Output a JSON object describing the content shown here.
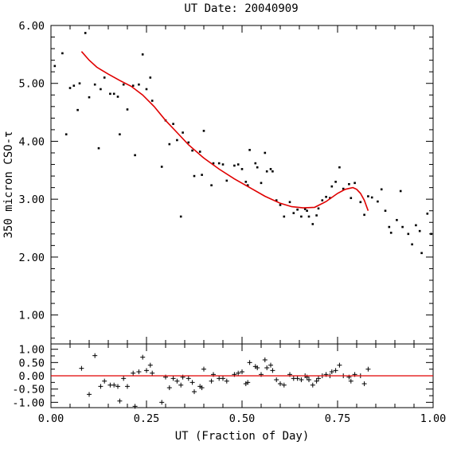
{
  "colors": {
    "fit": "#e00000",
    "zero_line": "#e00000",
    "points": "#000000"
  },
  "chart_data": [
    {
      "type": "scatter",
      "title": "UT Date: 20040909",
      "ylabel": "350 micron CSO-τ",
      "xlim": [
        0,
        1
      ],
      "ylim": [
        0.5,
        6.0
      ],
      "y_ticks": [
        "1.00",
        "2.00",
        "3.00",
        "4.00",
        "5.00",
        "6.00"
      ],
      "grid": false,
      "series": [
        {
          "marker": "dot",
          "points": [
            [
              0.01,
              5.3
            ],
            [
              0.03,
              5.52
            ],
            [
              0.04,
              4.12
            ],
            [
              0.05,
              4.92
            ],
            [
              0.06,
              4.96
            ],
            [
              0.07,
              4.54
            ],
            [
              0.075,
              5.0
            ],
            [
              0.09,
              5.87
            ],
            [
              0.1,
              4.76
            ],
            [
              0.115,
              4.98
            ],
            [
              0.125,
              3.88
            ],
            [
              0.13,
              4.9
            ],
            [
              0.14,
              5.1
            ],
            [
              0.155,
              4.82
            ],
            [
              0.165,
              4.82
            ],
            [
              0.175,
              4.77
            ],
            [
              0.18,
              4.12
            ],
            [
              0.19,
              4.98
            ],
            [
              0.2,
              4.55
            ],
            [
              0.215,
              4.96
            ],
            [
              0.22,
              3.76
            ],
            [
              0.23,
              4.98
            ],
            [
              0.24,
              5.5
            ],
            [
              0.25,
              4.9
            ],
            [
              0.26,
              5.1
            ],
            [
              0.265,
              4.7
            ],
            [
              0.29,
              3.56
            ],
            [
              0.3,
              4.36
            ],
            [
              0.31,
              3.95
            ],
            [
              0.32,
              4.3
            ],
            [
              0.33,
              4.02
            ],
            [
              0.34,
              2.7
            ],
            [
              0.345,
              4.15
            ],
            [
              0.36,
              3.98
            ],
            [
              0.37,
              3.84
            ],
            [
              0.375,
              3.4
            ],
            [
              0.39,
              3.82
            ],
            [
              0.395,
              3.42
            ],
            [
              0.4,
              4.18
            ],
            [
              0.42,
              3.24
            ],
            [
              0.425,
              3.62
            ],
            [
              0.44,
              3.62
            ],
            [
              0.45,
              3.6
            ],
            [
              0.46,
              3.32
            ],
            [
              0.48,
              3.58
            ],
            [
              0.49,
              3.6
            ],
            [
              0.5,
              3.52
            ],
            [
              0.51,
              3.3
            ],
            [
              0.515,
              3.24
            ],
            [
              0.52,
              3.85
            ],
            [
              0.535,
              3.62
            ],
            [
              0.54,
              3.55
            ],
            [
              0.55,
              3.28
            ],
            [
              0.56,
              3.8
            ],
            [
              0.565,
              3.48
            ],
            [
              0.575,
              3.52
            ],
            [
              0.58,
              3.48
            ],
            [
              0.59,
              2.98
            ],
            [
              0.6,
              2.9
            ],
            [
              0.61,
              2.7
            ],
            [
              0.625,
              2.95
            ],
            [
              0.635,
              2.76
            ],
            [
              0.645,
              2.82
            ],
            [
              0.655,
              2.7
            ],
            [
              0.665,
              2.83
            ],
            [
              0.67,
              2.8
            ],
            [
              0.675,
              2.7
            ],
            [
              0.685,
              2.57
            ],
            [
              0.695,
              2.72
            ],
            [
              0.7,
              2.84
            ],
            [
              0.71,
              2.98
            ],
            [
              0.72,
              3.04
            ],
            [
              0.73,
              3.02
            ],
            [
              0.735,
              3.22
            ],
            [
              0.745,
              3.3
            ],
            [
              0.755,
              3.55
            ],
            [
              0.765,
              3.18
            ],
            [
              0.78,
              3.26
            ],
            [
              0.785,
              3.02
            ],
            [
              0.795,
              3.28
            ],
            [
              0.81,
              2.95
            ],
            [
              0.82,
              2.73
            ],
            [
              0.83,
              3.05
            ],
            [
              0.84,
              3.03
            ],
            [
              0.855,
              2.96
            ],
            [
              0.865,
              3.17
            ],
            [
              0.875,
              2.8
            ],
            [
              0.885,
              2.52
            ],
            [
              0.89,
              2.42
            ],
            [
              0.905,
              2.64
            ],
            [
              0.915,
              3.14
            ],
            [
              0.92,
              2.52
            ],
            [
              0.935,
              2.4
            ],
            [
              0.945,
              2.22
            ],
            [
              0.955,
              2.55
            ],
            [
              0.965,
              2.45
            ],
            [
              0.97,
              2.07
            ],
            [
              0.985,
              2.75
            ],
            [
              0.995,
              2.4
            ]
          ]
        },
        {
          "marker": "line",
          "points": [
            [
              0.08,
              5.55
            ],
            [
              0.1,
              5.4
            ],
            [
              0.12,
              5.28
            ],
            [
              0.15,
              5.16
            ],
            [
              0.18,
              5.05
            ],
            [
              0.21,
              4.95
            ],
            [
              0.24,
              4.8
            ],
            [
              0.27,
              4.6
            ],
            [
              0.3,
              4.36
            ],
            [
              0.33,
              4.15
            ],
            [
              0.36,
              3.94
            ],
            [
              0.4,
              3.71
            ],
            [
              0.44,
              3.52
            ],
            [
              0.48,
              3.35
            ],
            [
              0.52,
              3.2
            ],
            [
              0.56,
              3.05
            ],
            [
              0.6,
              2.93
            ],
            [
              0.63,
              2.87
            ],
            [
              0.66,
              2.85
            ],
            [
              0.69,
              2.86
            ],
            [
              0.72,
              2.96
            ],
            [
              0.75,
              3.1
            ],
            [
              0.77,
              3.17
            ],
            [
              0.79,
              3.2
            ],
            [
              0.8,
              3.17
            ],
            [
              0.81,
              3.1
            ],
            [
              0.82,
              2.98
            ],
            [
              0.83,
              2.8
            ]
          ]
        }
      ]
    },
    {
      "type": "scatter",
      "xlabel": "UT (Fraction of Day)",
      "xlim": [
        0,
        1
      ],
      "ylim": [
        -1.2,
        1.2
      ],
      "x_ticks": [
        "0.00",
        "0.25",
        "0.50",
        "0.75",
        "1.00"
      ],
      "y_ticks": [
        "1.00",
        "0.50",
        "0.00",
        "-0.50",
        "-1.00"
      ],
      "grid": false,
      "series": [
        {
          "marker": "plus",
          "points": [
            [
              0.08,
              0.28
            ],
            [
              0.1,
              -0.7
            ],
            [
              0.115,
              0.76
            ],
            [
              0.13,
              -0.4
            ],
            [
              0.14,
              -0.2
            ],
            [
              0.155,
              -0.35
            ],
            [
              0.165,
              -0.35
            ],
            [
              0.175,
              -0.4
            ],
            [
              0.18,
              -0.95
            ],
            [
              0.19,
              -0.1
            ],
            [
              0.2,
              -0.4
            ],
            [
              0.215,
              0.1
            ],
            [
              0.22,
              -1.15
            ],
            [
              0.23,
              0.15
            ],
            [
              0.24,
              0.7
            ],
            [
              0.25,
              0.2
            ],
            [
              0.26,
              0.4
            ],
            [
              0.265,
              0.1
            ],
            [
              0.29,
              -1.0
            ],
            [
              0.3,
              -0.05
            ],
            [
              0.31,
              -0.45
            ],
            [
              0.32,
              -0.1
            ],
            [
              0.33,
              -0.2
            ],
            [
              0.34,
              -0.35
            ],
            [
              0.345,
              -0.05
            ],
            [
              0.36,
              -0.1
            ],
            [
              0.37,
              -0.25
            ],
            [
              0.375,
              -0.6
            ],
            [
              0.39,
              -0.4
            ],
            [
              0.395,
              -0.45
            ],
            [
              0.4,
              0.25
            ],
            [
              0.42,
              -0.2
            ],
            [
              0.425,
              0.05
            ],
            [
              0.44,
              -0.1
            ],
            [
              0.45,
              -0.1
            ],
            [
              0.46,
              -0.2
            ],
            [
              0.48,
              0.05
            ],
            [
              0.49,
              0.1
            ],
            [
              0.5,
              0.15
            ],
            [
              0.51,
              -0.3
            ],
            [
              0.515,
              -0.25
            ],
            [
              0.52,
              0.5
            ],
            [
              0.535,
              0.35
            ],
            [
              0.54,
              0.3
            ],
            [
              0.55,
              0.05
            ],
            [
              0.56,
              0.6
            ],
            [
              0.565,
              0.3
            ],
            [
              0.575,
              0.4
            ],
            [
              0.58,
              0.2
            ],
            [
              0.59,
              -0.15
            ],
            [
              0.6,
              -0.3
            ],
            [
              0.61,
              -0.35
            ],
            [
              0.625,
              0.05
            ],
            [
              0.635,
              -0.1
            ],
            [
              0.645,
              -0.1
            ],
            [
              0.655,
              -0.15
            ],
            [
              0.665,
              0.0
            ],
            [
              0.67,
              -0.05
            ],
            [
              0.675,
              -0.15
            ],
            [
              0.685,
              -0.35
            ],
            [
              0.695,
              -0.2
            ],
            [
              0.7,
              -0.1
            ],
            [
              0.71,
              0.0
            ],
            [
              0.72,
              0.05
            ],
            [
              0.73,
              0.0
            ],
            [
              0.735,
              0.15
            ],
            [
              0.745,
              0.2
            ],
            [
              0.755,
              0.4
            ],
            [
              0.765,
              0.0
            ],
            [
              0.78,
              -0.05
            ],
            [
              0.785,
              -0.2
            ],
            [
              0.795,
              0.05
            ],
            [
              0.81,
              0.0
            ],
            [
              0.82,
              -0.3
            ],
            [
              0.83,
              0.25
            ]
          ]
        },
        {
          "marker": "line",
          "points": [
            [
              0,
              0
            ],
            [
              1,
              0
            ]
          ]
        }
      ]
    }
  ]
}
